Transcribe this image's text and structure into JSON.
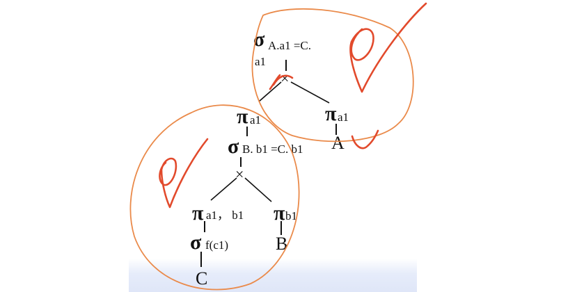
{
  "colors": {
    "ink": "#111111",
    "pen": "#ea5535",
    "circle": "#ea8a4a"
  },
  "tree_top": {
    "root": {
      "op": "σ",
      "cond_line1": "A.a1 =C.",
      "cond_line2": "a1"
    },
    "join": "×",
    "right": {
      "op": "π",
      "attr": "a1",
      "leaf": "A"
    }
  },
  "tree_bottom": {
    "root": {
      "op": "π",
      "attr": "a1"
    },
    "select": {
      "op": "σ",
      "cond": "B. b1 =C. b1"
    },
    "join": "×",
    "left": {
      "op": "π",
      "attr": "a1， b1"
    },
    "right": {
      "op": "π",
      "attr": "b1",
      "leaf": "B"
    },
    "left_select": {
      "op": "σ",
      "cond": "f(c1)",
      "leaf": "C"
    }
  },
  "annotations": [
    "check-mark-top",
    "check-mark-bottom",
    "check-mark-small"
  ]
}
